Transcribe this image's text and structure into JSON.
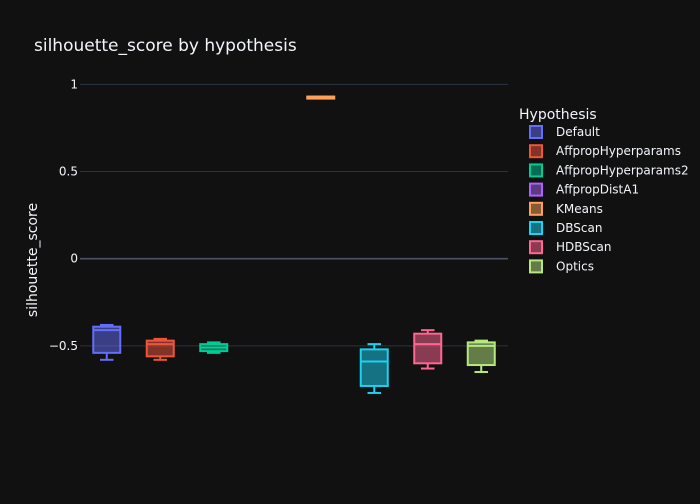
{
  "chart_data": {
    "type": "box",
    "title": "silhouette_score by hypothesis",
    "xlabel": "",
    "ylabel": "silhouette_score",
    "ylim": [
      -1.04,
      1.14
    ],
    "yticks": [
      -0.5,
      0,
      0.5,
      1
    ],
    "ytick_labels": [
      "−0.5",
      "0",
      "0.5",
      "1"
    ],
    "grid": true,
    "legend_title": "Hypothesis",
    "legend_position": "right",
    "series": [
      {
        "name": "Default",
        "color": "#636efa",
        "min": -0.58,
        "q1": -0.54,
        "median": -0.41,
        "q3": -0.39,
        "max": -0.38
      },
      {
        "name": "AffpropHyperparams",
        "color": "#ef553b",
        "min": -0.58,
        "q1": -0.56,
        "median": -0.49,
        "q3": -0.47,
        "max": -0.46
      },
      {
        "name": "AffpropHyperparams2",
        "color": "#00cc96",
        "min": -0.54,
        "q1": -0.53,
        "median": -0.51,
        "q3": -0.49,
        "max": -0.48
      },
      {
        "name": "AffpropDistA1",
        "color": "#ab63fa",
        "min": null,
        "q1": null,
        "median": null,
        "q3": null,
        "max": null
      },
      {
        "name": "KMeans",
        "color": "#ffa15a",
        "min": 0.92,
        "q1": 0.92,
        "median": 0.93,
        "q3": 0.93,
        "max": 0.93
      },
      {
        "name": "DBScan",
        "color": "#19d3f3",
        "min": -0.77,
        "q1": -0.73,
        "median": -0.59,
        "q3": -0.52,
        "max": -0.49
      },
      {
        "name": "HDBScan",
        "color": "#ff6692",
        "min": -0.63,
        "q1": -0.6,
        "median": -0.49,
        "q3": -0.43,
        "max": -0.41
      },
      {
        "name": "Optics",
        "color": "#b6e880",
        "min": -0.65,
        "q1": -0.61,
        "median": -0.5,
        "q3": -0.48,
        "max": -0.47
      }
    ]
  }
}
